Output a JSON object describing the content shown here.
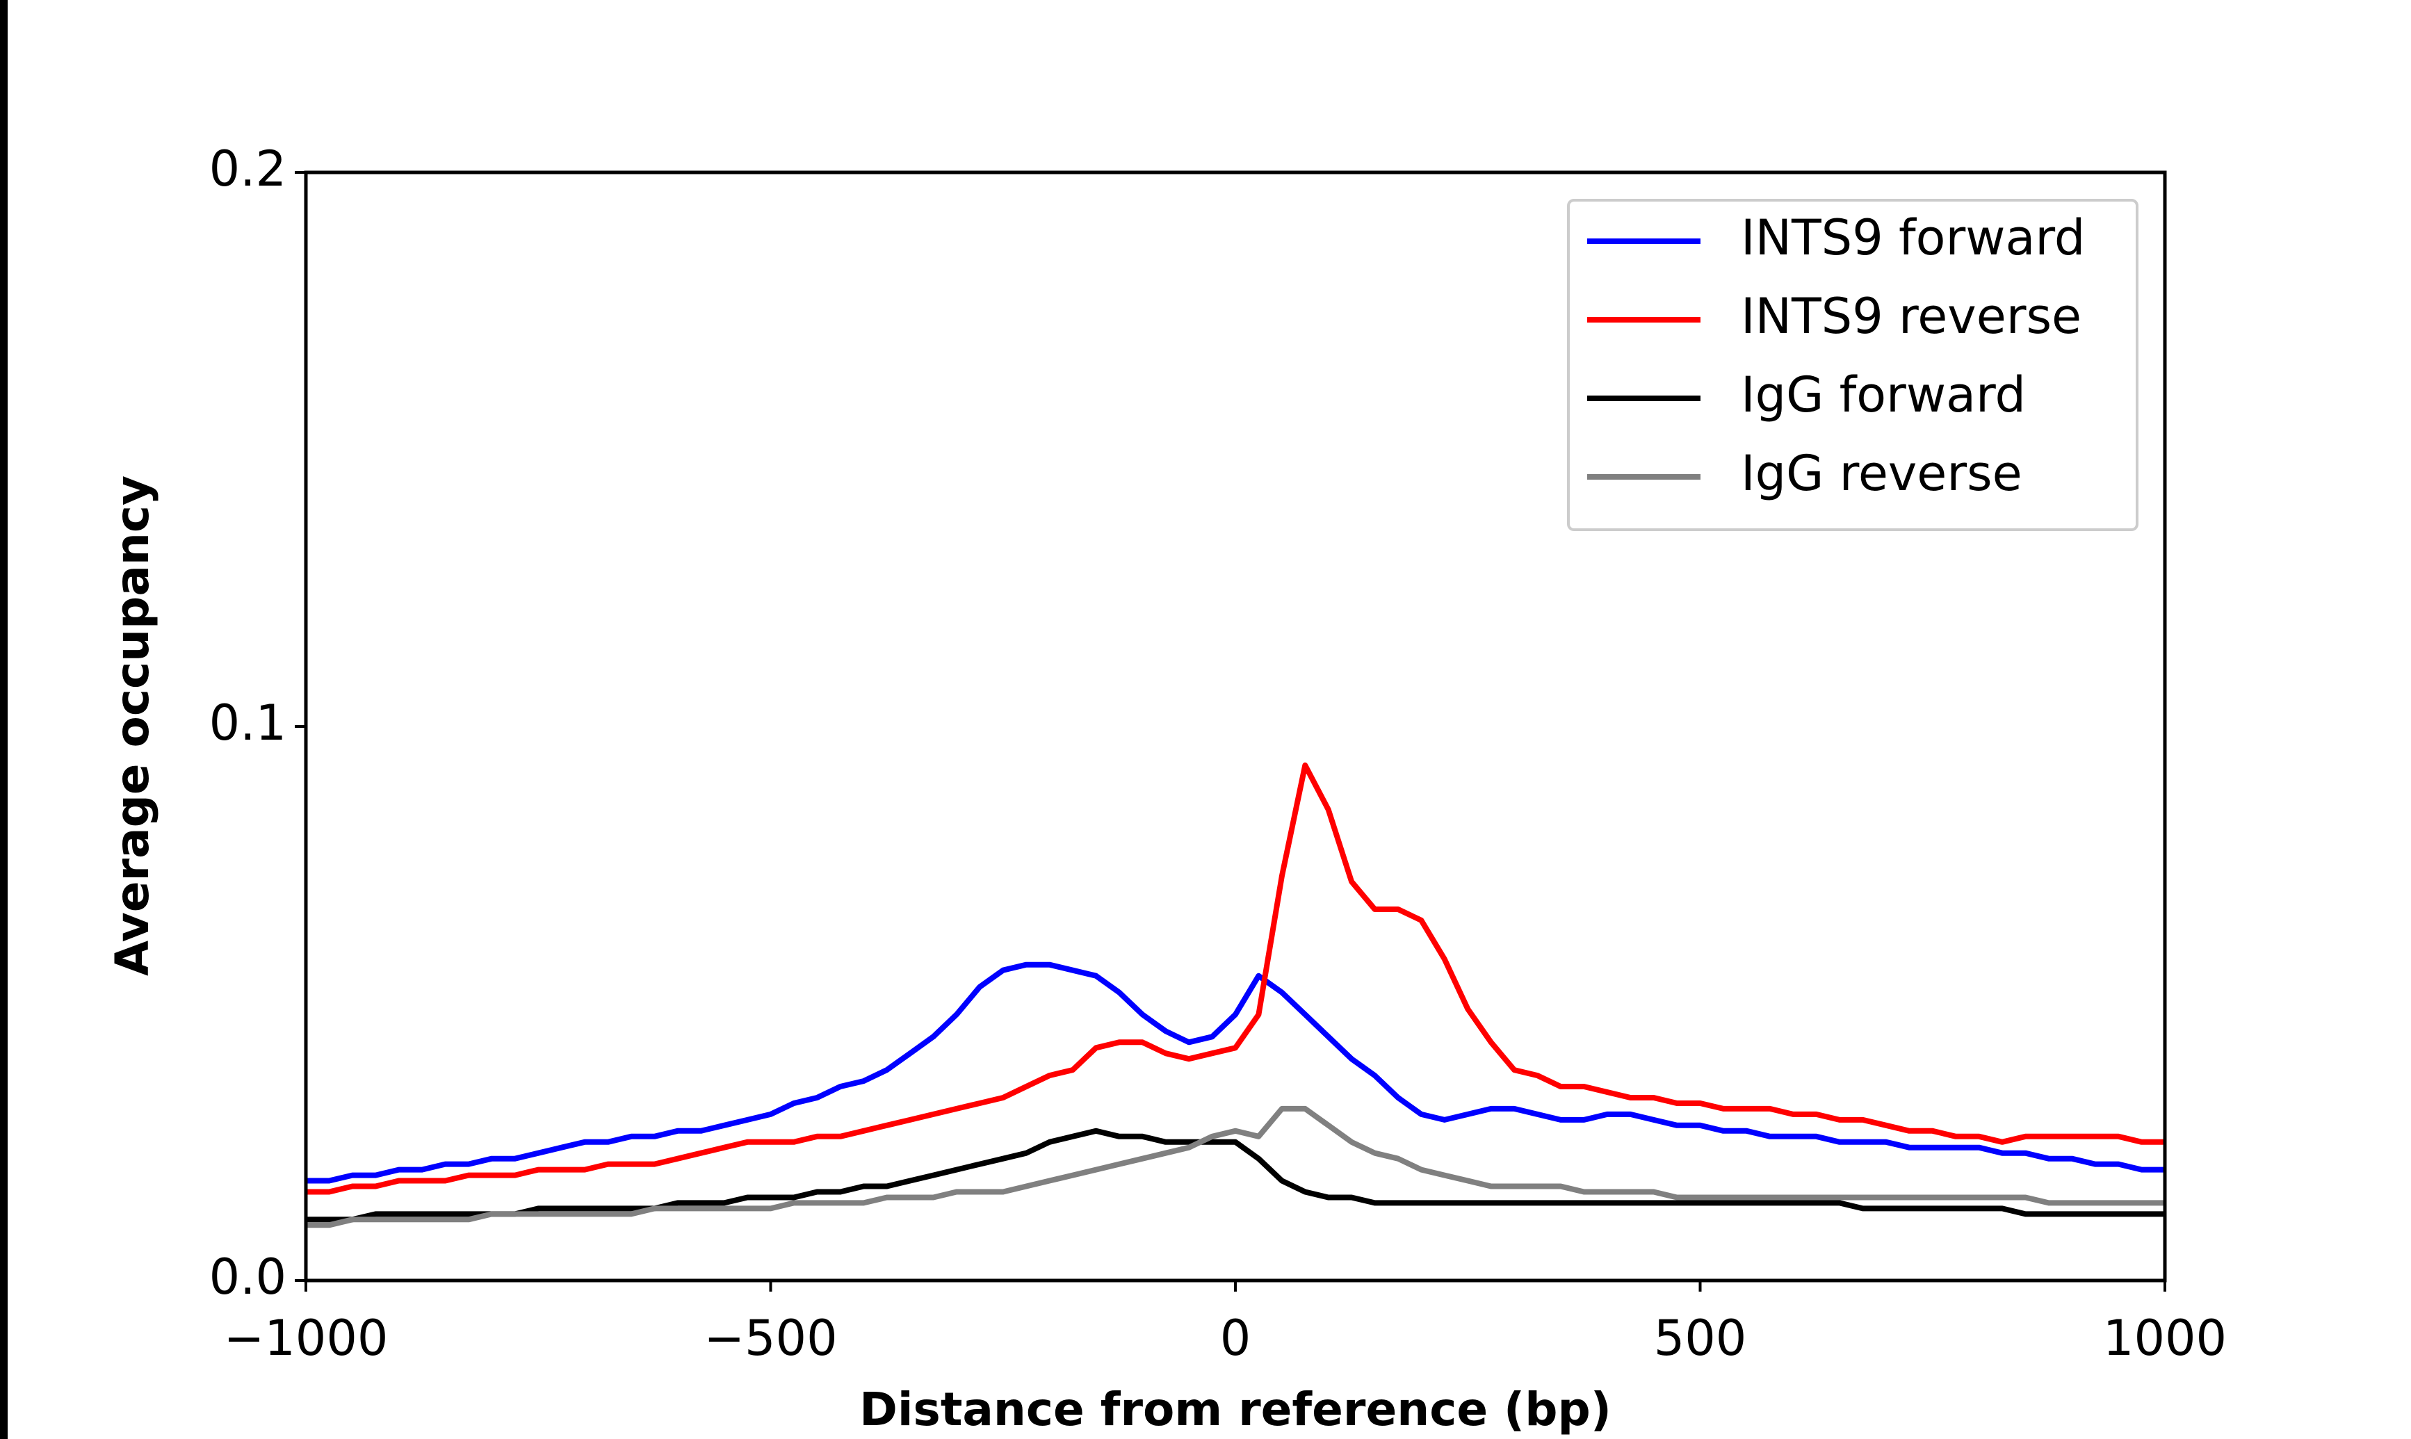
{
  "chart_data": {
    "type": "line",
    "xlabel": "Distance from reference (bp)",
    "ylabel": "Average occupancy",
    "x": [
      -1000,
      -975,
      -950,
      -925,
      -900,
      -875,
      -850,
      -825,
      -800,
      -775,
      -750,
      -725,
      -700,
      -675,
      -650,
      -625,
      -600,
      -575,
      -550,
      -525,
      -500,
      -475,
      -450,
      -425,
      -400,
      -375,
      -350,
      -325,
      -300,
      -275,
      -250,
      -225,
      -200,
      -175,
      -150,
      -125,
      -100,
      -75,
      -50,
      -25,
      0,
      25,
      50,
      75,
      100,
      125,
      150,
      175,
      200,
      225,
      250,
      275,
      300,
      325,
      350,
      375,
      400,
      425,
      450,
      475,
      500,
      525,
      550,
      575,
      600,
      625,
      650,
      675,
      700,
      725,
      750,
      775,
      800,
      825,
      850,
      875,
      900,
      925,
      950,
      975,
      1000
    ],
    "series": [
      {
        "name": "INTS9 forward",
        "color": "#0000ff",
        "values": [
          0.018,
          0.018,
          0.019,
          0.019,
          0.02,
          0.02,
          0.021,
          0.021,
          0.022,
          0.022,
          0.023,
          0.024,
          0.025,
          0.025,
          0.026,
          0.026,
          0.027,
          0.027,
          0.028,
          0.029,
          0.03,
          0.032,
          0.033,
          0.035,
          0.036,
          0.038,
          0.041,
          0.044,
          0.048,
          0.053,
          0.056,
          0.057,
          0.057,
          0.056,
          0.055,
          0.052,
          0.048,
          0.045,
          0.043,
          0.044,
          0.048,
          0.055,
          0.052,
          0.048,
          0.044,
          0.04,
          0.037,
          0.033,
          0.03,
          0.029,
          0.03,
          0.031,
          0.031,
          0.03,
          0.029,
          0.029,
          0.03,
          0.03,
          0.029,
          0.028,
          0.028,
          0.027,
          0.027,
          0.026,
          0.026,
          0.026,
          0.025,
          0.025,
          0.025,
          0.024,
          0.024,
          0.024,
          0.024,
          0.023,
          0.023,
          0.022,
          0.022,
          0.021,
          0.021,
          0.02,
          0.02
        ]
      },
      {
        "name": "INTS9 reverse",
        "color": "#ff0000",
        "values": [
          0.016,
          0.016,
          0.017,
          0.017,
          0.018,
          0.018,
          0.018,
          0.019,
          0.019,
          0.019,
          0.02,
          0.02,
          0.02,
          0.021,
          0.021,
          0.021,
          0.022,
          0.023,
          0.024,
          0.025,
          0.025,
          0.025,
          0.026,
          0.026,
          0.027,
          0.028,
          0.029,
          0.03,
          0.031,
          0.032,
          0.033,
          0.035,
          0.037,
          0.038,
          0.042,
          0.043,
          0.043,
          0.041,
          0.04,
          0.041,
          0.042,
          0.048,
          0.073,
          0.093,
          0.085,
          0.072,
          0.067,
          0.067,
          0.065,
          0.058,
          0.049,
          0.043,
          0.038,
          0.037,
          0.035,
          0.035,
          0.034,
          0.033,
          0.033,
          0.032,
          0.032,
          0.031,
          0.031,
          0.031,
          0.03,
          0.03,
          0.029,
          0.029,
          0.028,
          0.027,
          0.027,
          0.026,
          0.026,
          0.025,
          0.026,
          0.026,
          0.026,
          0.026,
          0.026,
          0.025,
          0.025
        ]
      },
      {
        "name": "IgG forward",
        "color": "#000000",
        "values": [
          0.011,
          0.011,
          0.011,
          0.012,
          0.012,
          0.012,
          0.012,
          0.012,
          0.012,
          0.012,
          0.013,
          0.013,
          0.013,
          0.013,
          0.013,
          0.013,
          0.014,
          0.014,
          0.014,
          0.015,
          0.015,
          0.015,
          0.016,
          0.016,
          0.017,
          0.017,
          0.018,
          0.019,
          0.02,
          0.021,
          0.022,
          0.023,
          0.025,
          0.026,
          0.027,
          0.026,
          0.026,
          0.025,
          0.025,
          0.025,
          0.025,
          0.022,
          0.018,
          0.016,
          0.015,
          0.015,
          0.014,
          0.014,
          0.014,
          0.014,
          0.014,
          0.014,
          0.014,
          0.014,
          0.014,
          0.014,
          0.014,
          0.014,
          0.014,
          0.014,
          0.014,
          0.014,
          0.014,
          0.014,
          0.014,
          0.014,
          0.014,
          0.013,
          0.013,
          0.013,
          0.013,
          0.013,
          0.013,
          0.013,
          0.012,
          0.012,
          0.012,
          0.012,
          0.012,
          0.012,
          0.012
        ]
      },
      {
        "name": "IgG reverse",
        "color": "#808080",
        "values": [
          0.01,
          0.01,
          0.011,
          0.011,
          0.011,
          0.011,
          0.011,
          0.011,
          0.012,
          0.012,
          0.012,
          0.012,
          0.012,
          0.012,
          0.012,
          0.013,
          0.013,
          0.013,
          0.013,
          0.013,
          0.013,
          0.014,
          0.014,
          0.014,
          0.014,
          0.015,
          0.015,
          0.015,
          0.016,
          0.016,
          0.016,
          0.017,
          0.018,
          0.019,
          0.02,
          0.021,
          0.022,
          0.023,
          0.024,
          0.026,
          0.027,
          0.026,
          0.031,
          0.031,
          0.028,
          0.025,
          0.023,
          0.022,
          0.02,
          0.019,
          0.018,
          0.017,
          0.017,
          0.017,
          0.017,
          0.016,
          0.016,
          0.016,
          0.016,
          0.015,
          0.015,
          0.015,
          0.015,
          0.015,
          0.015,
          0.015,
          0.015,
          0.015,
          0.015,
          0.015,
          0.015,
          0.015,
          0.015,
          0.015,
          0.015,
          0.014,
          0.014,
          0.014,
          0.014,
          0.014,
          0.014
        ]
      }
    ],
    "xlim": [
      -1000,
      1000
    ],
    "ylim": [
      0,
      0.2
    ],
    "xticks": [
      {
        "value": -1000,
        "label": "−1000"
      },
      {
        "value": -500,
        "label": "−500"
      },
      0,
      500,
      1000
    ],
    "yticks": [
      {
        "value": 0,
        "label": "0.0"
      },
      0.1,
      0.2
    ],
    "legend": "upper right",
    "grid": false
  }
}
